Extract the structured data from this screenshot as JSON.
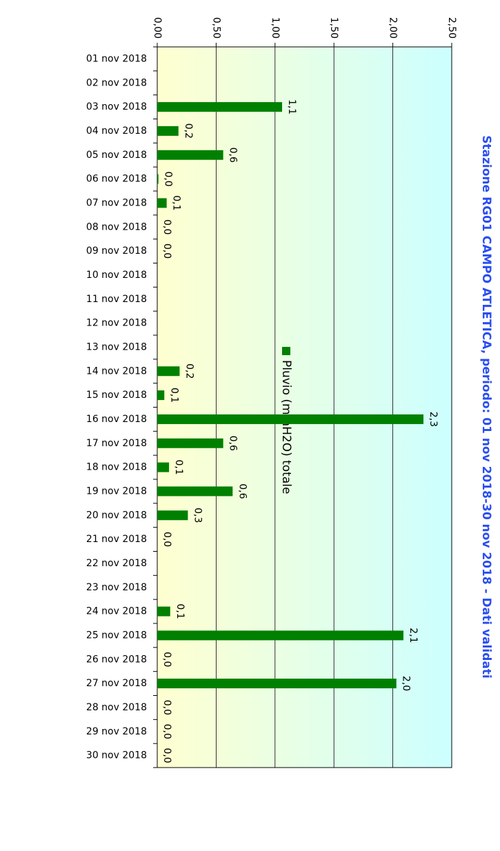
{
  "chart_data": {
    "type": "bar",
    "orientation": "horizontal",
    "title": "Stazione RG01 CAMPO ATLETICA, periodo: 01 nov 2018-30 nov 2018 - Dati validati",
    "categories": [
      "01 nov 2018",
      "02 nov 2018",
      "03 nov 2018",
      "04 nov 2018",
      "05 nov 2018",
      "06 nov 2018",
      "07 nov 2018",
      "08 nov 2018",
      "09 nov 2018",
      "10 nov 2018",
      "11 nov 2018",
      "12 nov 2018",
      "13 nov 2018",
      "14 nov 2018",
      "15 nov 2018",
      "16 nov 2018",
      "17 nov 2018",
      "18 nov 2018",
      "19 nov 2018",
      "20 nov 2018",
      "21 nov 2018",
      "22 nov 2018",
      "23 nov 2018",
      "24 nov 2018",
      "25 nov 2018",
      "26 nov 2018",
      "27 nov 2018",
      "28 nov 2018",
      "29 nov 2018",
      "30 nov 2018"
    ],
    "series": [
      {
        "name": "Pluvio (mmH2O) totale",
        "color": "#008000",
        "values": [
          null,
          null,
          1.06,
          0.18,
          0.56,
          0.01,
          0.08,
          0,
          0,
          null,
          null,
          null,
          null,
          0.19,
          0.06,
          2.26,
          0.56,
          0.1,
          0.64,
          0.26,
          0,
          null,
          null,
          0.11,
          2.09,
          0,
          2.03,
          0,
          0,
          0
        ],
        "value_labels": [
          null,
          null,
          "1,1",
          "0,2",
          "0,6",
          "0,0",
          "0,1",
          "0,0",
          "0,0",
          null,
          null,
          null,
          null,
          "0,2",
          "0,1",
          "2,3",
          "0,6",
          "0,1",
          "0,6",
          "0,3",
          "0,0",
          null,
          null,
          "0,1",
          "2,1",
          "0,0",
          "2,0",
          "0,0",
          "0,0",
          "0,0"
        ]
      }
    ],
    "ylim": [
      0,
      2.5
    ],
    "yticks": [
      {
        "value": 0,
        "label": "0,00"
      },
      {
        "value": 0.5,
        "label": "0,50"
      },
      {
        "value": 1,
        "label": "1,00"
      },
      {
        "value": 1.5,
        "label": "1,50"
      },
      {
        "value": 2,
        "label": "2,00"
      },
      {
        "value": 2.5,
        "label": "2,50"
      }
    ],
    "grid": true
  }
}
